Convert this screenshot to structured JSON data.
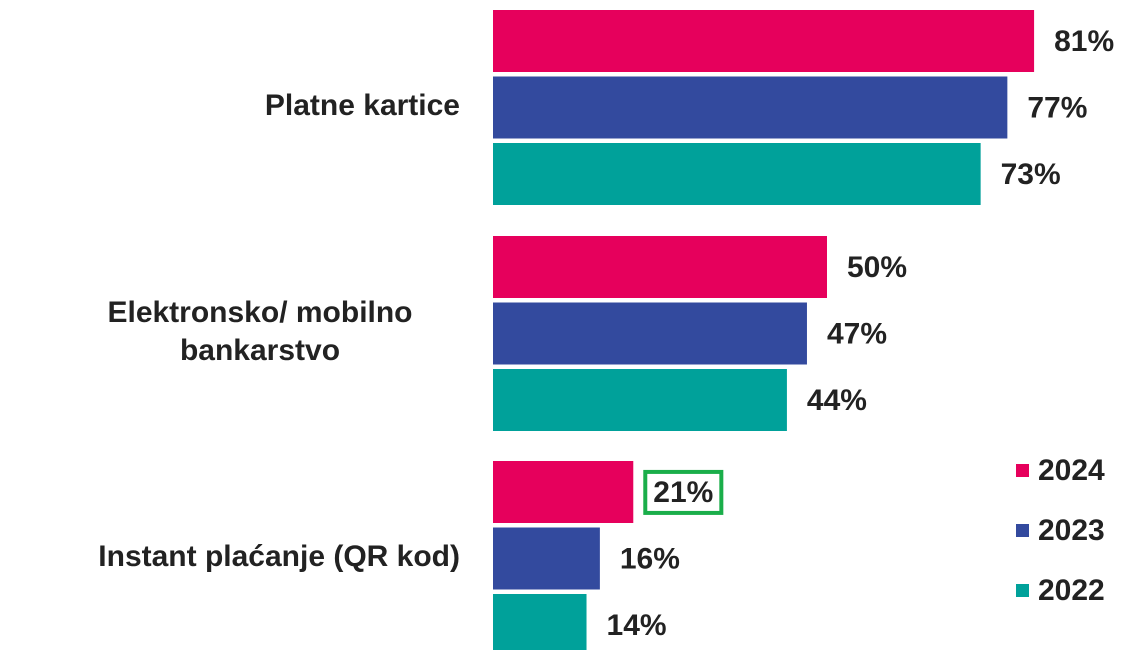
{
  "chart_data": {
    "type": "barh",
    "categories": [
      "Platne kartice",
      "Elektronsko/ mobilno bankarstvo",
      "Instant plaćanje (QR kod)"
    ],
    "series": [
      {
        "name": "2024",
        "color": "#e6005c",
        "values": [
          81,
          50,
          21
        ],
        "value_labels": [
          "81%",
          "50%",
          "21%"
        ]
      },
      {
        "name": "2023",
        "color": "#334a9e",
        "values": [
          77,
          47,
          16
        ],
        "value_labels": [
          "77%",
          "47%",
          "16%"
        ]
      },
      {
        "name": "2022",
        "color": "#00a19a",
        "values": [
          73,
          44,
          14
        ],
        "value_labels": [
          "73%",
          "44%",
          "14%"
        ]
      }
    ],
    "legend": "lower right"
  }
}
